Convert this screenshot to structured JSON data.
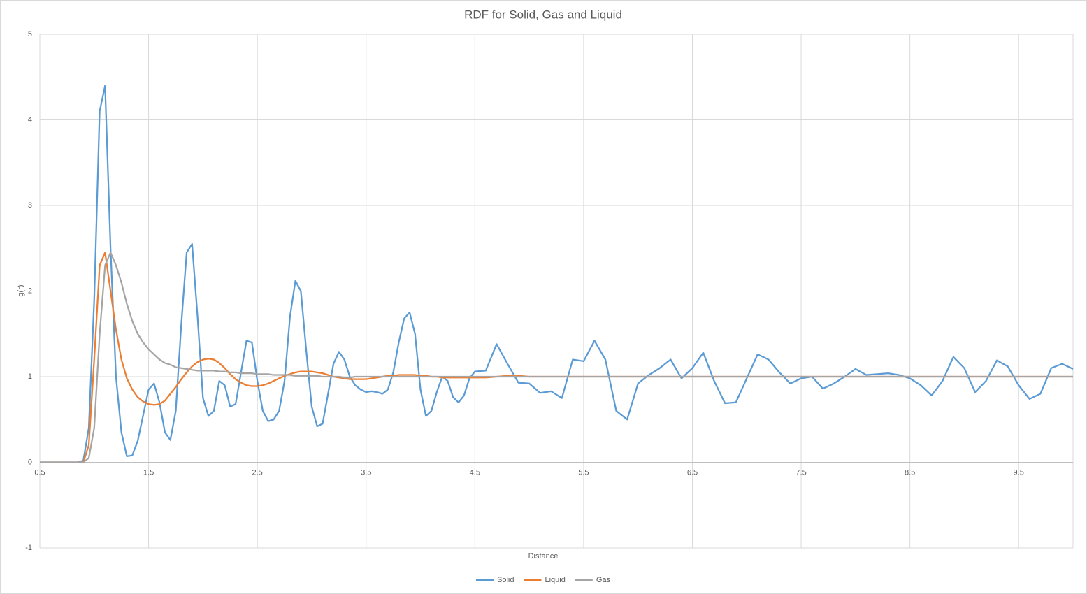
{
  "chart_data": {
    "type": "line",
    "title": "RDF for Solid, Gas and Liquid",
    "x_label": "Distance",
    "y_label": "g(r)",
    "x": [
      0.5,
      0.55,
      0.6,
      0.65,
      0.7,
      0.75,
      0.8,
      0.85,
      0.9,
      0.95,
      1,
      1.05,
      1.1,
      1.15,
      1.2,
      1.25,
      1.3,
      1.35,
      1.4,
      1.45,
      1.5,
      1.55,
      1.6,
      1.65,
      1.7,
      1.75,
      1.8,
      1.85,
      1.9,
      1.95,
      2,
      2.05,
      2.1,
      2.15,
      2.2,
      2.25,
      2.3,
      2.35,
      2.4,
      2.45,
      2.5,
      2.55,
      2.6,
      2.65,
      2.7,
      2.75,
      2.8,
      2.85,
      2.9,
      2.95,
      3,
      3.05,
      3.1,
      3.15,
      3.2,
      3.25,
      3.3,
      3.35,
      3.4,
      3.45,
      3.5,
      3.55,
      3.6,
      3.65,
      3.7,
      3.75,
      3.8,
      3.85,
      3.9,
      3.95,
      4,
      4.05,
      4.1,
      4.15,
      4.2,
      4.25,
      4.3,
      4.35,
      4.4,
      4.45,
      4.5,
      4.6,
      4.7,
      4.8,
      4.9,
      5,
      5.1,
      5.2,
      5.3,
      5.4,
      5.5,
      5.6,
      5.7,
      5.8,
      5.9,
      6,
      6.1,
      6.2,
      6.3,
      6.4,
      6.5,
      6.6,
      6.7,
      6.8,
      6.9,
      7,
      7.1,
      7.2,
      7.3,
      7.4,
      7.5,
      7.6,
      7.7,
      7.8,
      7.9,
      8,
      8.1,
      8.2,
      8.3,
      8.4,
      8.5,
      8.6,
      8.7,
      8.8,
      8.9,
      9,
      9.1,
      9.2,
      9.3,
      9.4,
      9.5,
      9.6,
      9.7,
      9.8,
      9.9,
      10
    ],
    "series": [
      {
        "name": "Solid",
        "color": "#5b9bd5",
        "values": [
          0,
          0,
          0,
          0,
          0,
          0,
          0,
          0,
          0.02,
          0.4,
          1.9,
          4.1,
          4.4,
          2.5,
          1.0,
          0.35,
          0.07,
          0.08,
          0.25,
          0.55,
          0.85,
          0.92,
          0.7,
          0.35,
          0.26,
          0.6,
          1.6,
          2.45,
          2.55,
          1.7,
          0.75,
          0.54,
          0.6,
          0.95,
          0.9,
          0.65,
          0.68,
          1.05,
          1.42,
          1.4,
          0.95,
          0.6,
          0.48,
          0.5,
          0.6,
          0.95,
          1.7,
          2.12,
          2.0,
          1.3,
          0.65,
          0.42,
          0.45,
          0.8,
          1.15,
          1.29,
          1.2,
          1.0,
          0.9,
          0.85,
          0.82,
          0.83,
          0.82,
          0.8,
          0.85,
          1.05,
          1.4,
          1.68,
          1.75,
          1.5,
          0.85,
          0.54,
          0.6,
          0.82,
          1.0,
          0.95,
          0.76,
          0.7,
          0.78,
          0.98,
          1.06,
          1.07,
          1.38,
          1.15,
          0.93,
          0.92,
          0.81,
          0.83,
          0.75,
          1.2,
          1.18,
          1.42,
          1.2,
          0.6,
          0.5,
          0.92,
          1.02,
          1.1,
          1.2,
          0.98,
          1.1,
          1.28,
          0.95,
          0.69,
          0.7,
          0.98,
          1.26,
          1.2,
          1.05,
          0.92,
          0.98,
          1.0,
          0.86,
          0.92,
          1.0,
          1.09,
          1.02,
          1.03,
          1.04,
          1.02,
          0.98,
          0.9,
          0.78,
          0.95,
          1.23,
          1.1,
          0.82,
          0.95,
          1.19,
          1.12,
          0.9,
          0.74,
          0.8,
          1.1,
          1.15,
          1.09
        ]
      },
      {
        "name": "Liquid",
        "color": "#ed7d31",
        "values": [
          0,
          0,
          0,
          0,
          0,
          0,
          0,
          0,
          0,
          0.2,
          1.2,
          2.3,
          2.45,
          2.0,
          1.55,
          1.2,
          0.98,
          0.85,
          0.76,
          0.71,
          0.68,
          0.67,
          0.68,
          0.72,
          0.8,
          0.88,
          0.97,
          1.05,
          1.12,
          1.17,
          1.2,
          1.21,
          1.2,
          1.16,
          1.1,
          1.03,
          0.97,
          0.93,
          0.9,
          0.89,
          0.89,
          0.9,
          0.92,
          0.95,
          0.98,
          1.01,
          1.03,
          1.05,
          1.06,
          1.06,
          1.06,
          1.05,
          1.04,
          1.02,
          1.0,
          0.99,
          0.98,
          0.97,
          0.97,
          0.97,
          0.97,
          0.98,
          0.99,
          1.0,
          1.01,
          1.01,
          1.02,
          1.02,
          1.02,
          1.02,
          1.01,
          1.01,
          1.0,
          1.0,
          0.99,
          0.99,
          0.99,
          0.99,
          0.99,
          0.99,
          0.99,
          0.99,
          1.0,
          1.01,
          1.01,
          1,
          1,
          1,
          1,
          1,
          1,
          1,
          1,
          1,
          1,
          1,
          1,
          1,
          1,
          1,
          1,
          1,
          1,
          1,
          1,
          1,
          1,
          1,
          1,
          1,
          1,
          1,
          1,
          1,
          1,
          1,
          1,
          1,
          1,
          1,
          1,
          1,
          1,
          1,
          1,
          1,
          1,
          1,
          1,
          1,
          1,
          1,
          1,
          1,
          1,
          1
        ]
      },
      {
        "name": "Gas",
        "color": "#a5a5a5",
        "values": [
          0,
          0,
          0,
          0,
          0,
          0,
          0,
          0,
          0,
          0.05,
          0.4,
          1.5,
          2.3,
          2.45,
          2.3,
          2.1,
          1.85,
          1.65,
          1.5,
          1.4,
          1.32,
          1.26,
          1.2,
          1.16,
          1.14,
          1.11,
          1.1,
          1.09,
          1.08,
          1.07,
          1.07,
          1.07,
          1.07,
          1.06,
          1.06,
          1.05,
          1.05,
          1.04,
          1.04,
          1.04,
          1.03,
          1.03,
          1.03,
          1.02,
          1.02,
          1.02,
          1.02,
          1.01,
          1.01,
          1.01,
          1.01,
          1.01,
          1.0,
          1.0,
          1.0,
          1.0,
          0.99,
          0.99,
          1.0,
          1.0,
          1,
          1,
          1,
          1,
          1,
          1,
          1,
          1,
          1,
          1,
          1,
          1,
          1,
          1,
          1,
          1,
          1,
          1,
          1,
          1,
          1,
          1,
          1,
          1,
          1,
          1,
          1,
          1,
          1,
          1,
          1,
          1,
          1,
          1,
          1,
          1,
          1,
          1,
          1,
          1,
          1,
          1,
          1,
          1,
          1,
          1,
          1,
          1,
          1,
          1,
          1,
          1,
          1,
          1,
          1,
          1,
          1,
          1,
          1,
          1,
          1,
          1,
          1,
          1,
          1,
          1,
          1,
          1,
          1,
          1,
          1,
          1,
          1,
          1,
          1,
          1
        ]
      }
    ],
    "xlim": [
      0.5,
      10
    ],
    "xticks": [
      0.5,
      1.5,
      2.5,
      3.5,
      4.5,
      5.5,
      6.5,
      7.5,
      8.5,
      9.5
    ],
    "ylim": [
      -1,
      5
    ],
    "yticks": [
      -1,
      0,
      1,
      2,
      3,
      4,
      5
    ],
    "grid": true,
    "legend": "bottom"
  }
}
